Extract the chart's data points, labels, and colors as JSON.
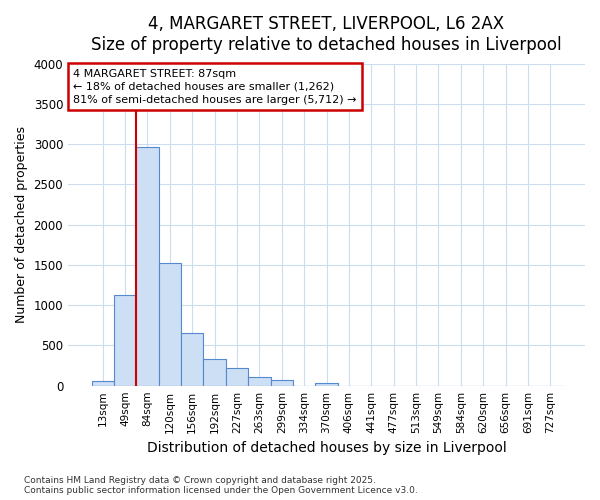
{
  "title": "4, MARGARET STREET, LIVERPOOL, L6 2AX",
  "subtitle": "Size of property relative to detached houses in Liverpool",
  "xlabel": "Distribution of detached houses by size in Liverpool",
  "ylabel": "Number of detached properties",
  "categories": [
    "13sqm",
    "49sqm",
    "84sqm",
    "120sqm",
    "156sqm",
    "192sqm",
    "227sqm",
    "263sqm",
    "299sqm",
    "334sqm",
    "370sqm",
    "406sqm",
    "441sqm",
    "477sqm",
    "513sqm",
    "549sqm",
    "584sqm",
    "620sqm",
    "656sqm",
    "691sqm",
    "727sqm"
  ],
  "values": [
    60,
    1130,
    2970,
    1530,
    660,
    330,
    220,
    110,
    75,
    0,
    30,
    0,
    0,
    0,
    0,
    0,
    0,
    0,
    0,
    0,
    0
  ],
  "bar_color": "#ccdff5",
  "bar_edge_color": "#5588cc",
  "vline_color": "#cc0000",
  "vline_index": 1.5,
  "annotation_text": "4 MARGARET STREET: 87sqm\n← 18% of detached houses are smaller (1,262)\n81% of semi-detached houses are larger (5,712) →",
  "annotation_box_edgecolor": "#cc0000",
  "annotation_box_facecolor": "#ffffff",
  "ylim": [
    0,
    4000
  ],
  "yticks": [
    0,
    500,
    1000,
    1500,
    2000,
    2500,
    3000,
    3500,
    4000
  ],
  "title_fontsize": 12,
  "xlabel_fontsize": 10,
  "ylabel_fontsize": 9,
  "footer_text": "Contains HM Land Registry data © Crown copyright and database right 2025.\nContains public sector information licensed under the Open Government Licence v3.0.",
  "background_color": "#ffffff",
  "plot_bg_color": "#ffffff",
  "grid_color": "#ccddee"
}
